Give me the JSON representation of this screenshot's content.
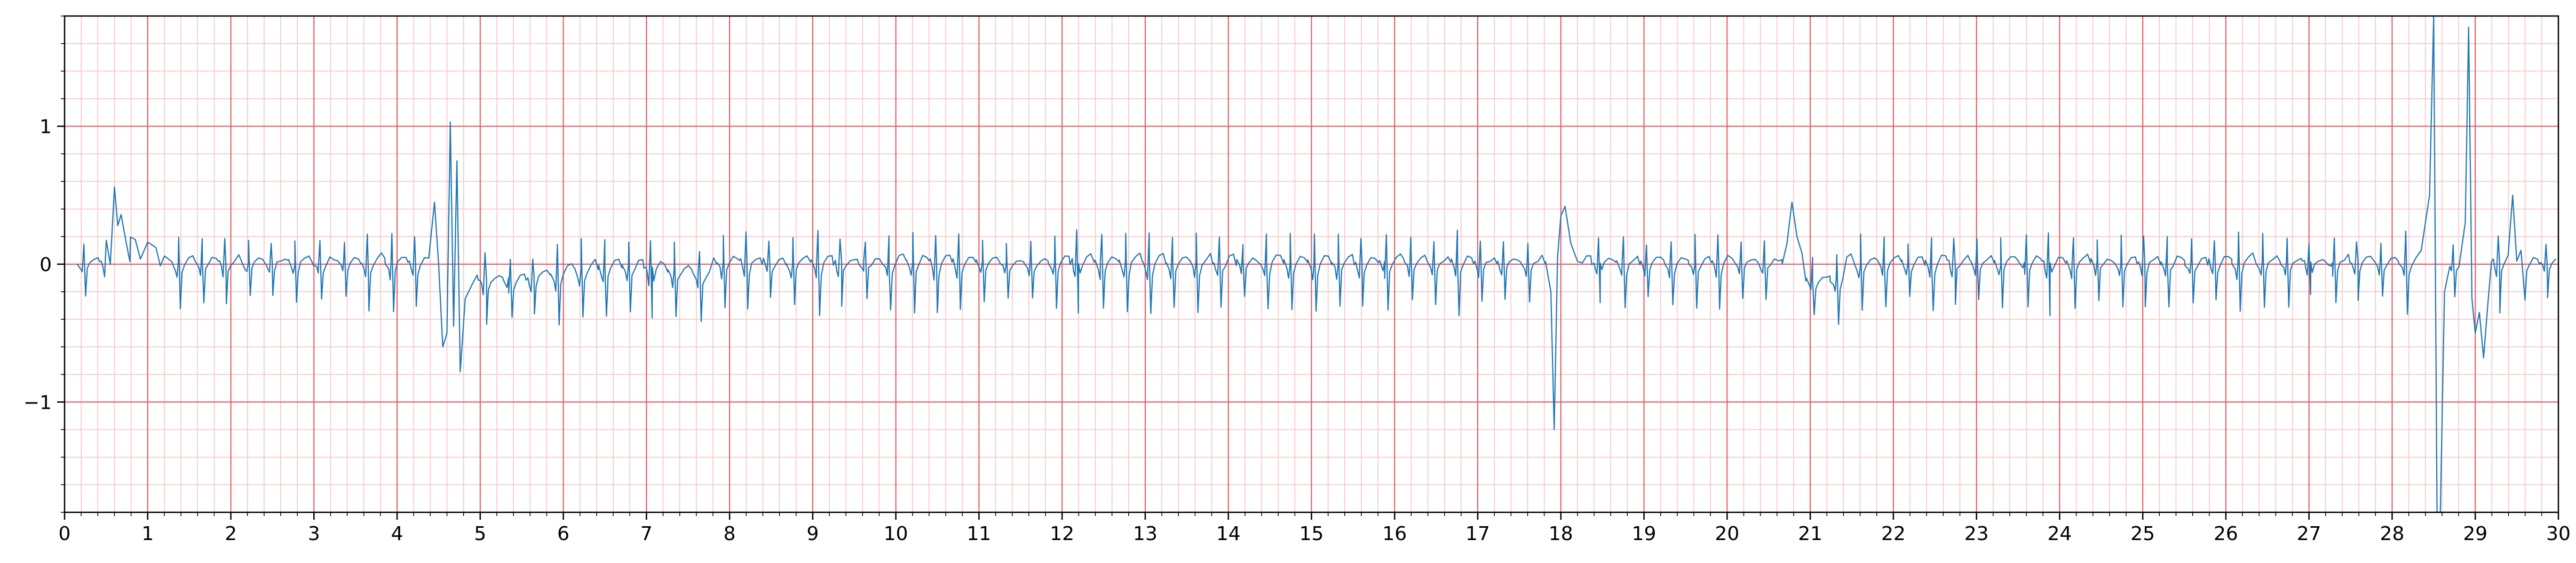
{
  "chart_data": {
    "type": "line",
    "title": "",
    "xlabel": "",
    "ylabel": "",
    "xlim": [
      0,
      30
    ],
    "ylim": [
      -1.8,
      1.8
    ],
    "x_ticks": [
      0,
      1,
      2,
      3,
      4,
      5,
      6,
      7,
      8,
      9,
      10,
      11,
      12,
      13,
      14,
      15,
      16,
      17,
      18,
      19,
      20,
      21,
      22,
      23,
      24,
      25,
      26,
      27,
      28,
      29,
      30
    ],
    "x_tick_labels": [
      "0",
      "1",
      "2",
      "3",
      "4",
      "5",
      "6",
      "7",
      "8",
      "9",
      "10",
      "11",
      "12",
      "13",
      "14",
      "15",
      "16",
      "17",
      "18",
      "19",
      "20",
      "21",
      "22",
      "23",
      "24",
      "25",
      "26",
      "27",
      "28",
      "29",
      "30"
    ],
    "y_ticks": [
      -1,
      0,
      1
    ],
    "y_tick_labels": [
      "−1",
      "0",
      "1"
    ],
    "grid": {
      "major": true,
      "minor": true,
      "x_major_step": 1,
      "x_minor_step": 0.2,
      "y_major_step": 1,
      "y_minor_step": 0.2,
      "major_color": "#e8565c",
      "minor_color": "#f9c4c4"
    },
    "line_color": "#1f77b4",
    "beat_interval_s": 0.285,
    "beat_template_t": [
      -0.08,
      -0.04,
      -0.02,
      0.0,
      0.02,
      0.04,
      0.07,
      0.12,
      0.17,
      0.21,
      0.285
    ],
    "beat_template_v": [
      0.01,
      -0.03,
      -0.08,
      0.18,
      -0.28,
      -0.05,
      0.0,
      0.04,
      0.05,
      0.02,
      0.01
    ],
    "artifacts": [
      {
        "t": 0.55,
        "v": 0.0
      },
      {
        "t": 0.6,
        "v": 0.56
      },
      {
        "t": 0.64,
        "v": 0.28
      },
      {
        "t": 0.68,
        "v": 0.36
      },
      {
        "t": 0.74,
        "v": 0.16
      },
      {
        "t": 0.85,
        "v": 0.18
      },
      {
        "t": 1.0,
        "v": 0.16
      },
      {
        "t": 1.1,
        "v": 0.12
      },
      {
        "t": 4.45,
        "v": 0.45
      },
      {
        "t": 4.5,
        "v": 0.0
      },
      {
        "t": 4.55,
        "v": -0.6
      },
      {
        "t": 4.6,
        "v": -0.5
      },
      {
        "t": 4.64,
        "v": 1.03
      },
      {
        "t": 4.68,
        "v": -0.45
      },
      {
        "t": 4.72,
        "v": 0.75
      },
      {
        "t": 4.76,
        "v": -0.78
      },
      {
        "t": 4.82,
        "v": -0.25
      },
      {
        "t": 4.9,
        "v": -0.15
      },
      {
        "t": 17.88,
        "v": -0.2
      },
      {
        "t": 17.92,
        "v": -1.2
      },
      {
        "t": 17.96,
        "v": 0.05
      },
      {
        "t": 18.0,
        "v": 0.35
      },
      {
        "t": 18.05,
        "v": 0.42
      },
      {
        "t": 18.12,
        "v": 0.15
      },
      {
        "t": 18.2,
        "v": 0.02
      },
      {
        "t": 20.72,
        "v": 0.15
      },
      {
        "t": 20.78,
        "v": 0.45
      },
      {
        "t": 20.84,
        "v": 0.2
      },
      {
        "t": 20.9,
        "v": 0.08
      },
      {
        "t": 28.35,
        "v": 0.1
      },
      {
        "t": 28.45,
        "v": 0.5
      },
      {
        "t": 28.5,
        "v": 1.8
      },
      {
        "t": 28.54,
        "v": -1.8
      },
      {
        "t": 28.58,
        "v": -1.8
      },
      {
        "t": 28.63,
        "v": -0.2
      },
      {
        "t": 28.88,
        "v": 0.3
      },
      {
        "t": 28.92,
        "v": 1.72
      },
      {
        "t": 28.96,
        "v": -0.25
      },
      {
        "t": 29.0,
        "v": -0.5
      },
      {
        "t": 29.05,
        "v": -0.35
      },
      {
        "t": 29.1,
        "v": -0.68
      },
      {
        "t": 29.15,
        "v": -0.3
      },
      {
        "t": 29.45,
        "v": 0.5
      },
      {
        "t": 29.55,
        "v": 0.1
      }
    ]
  }
}
